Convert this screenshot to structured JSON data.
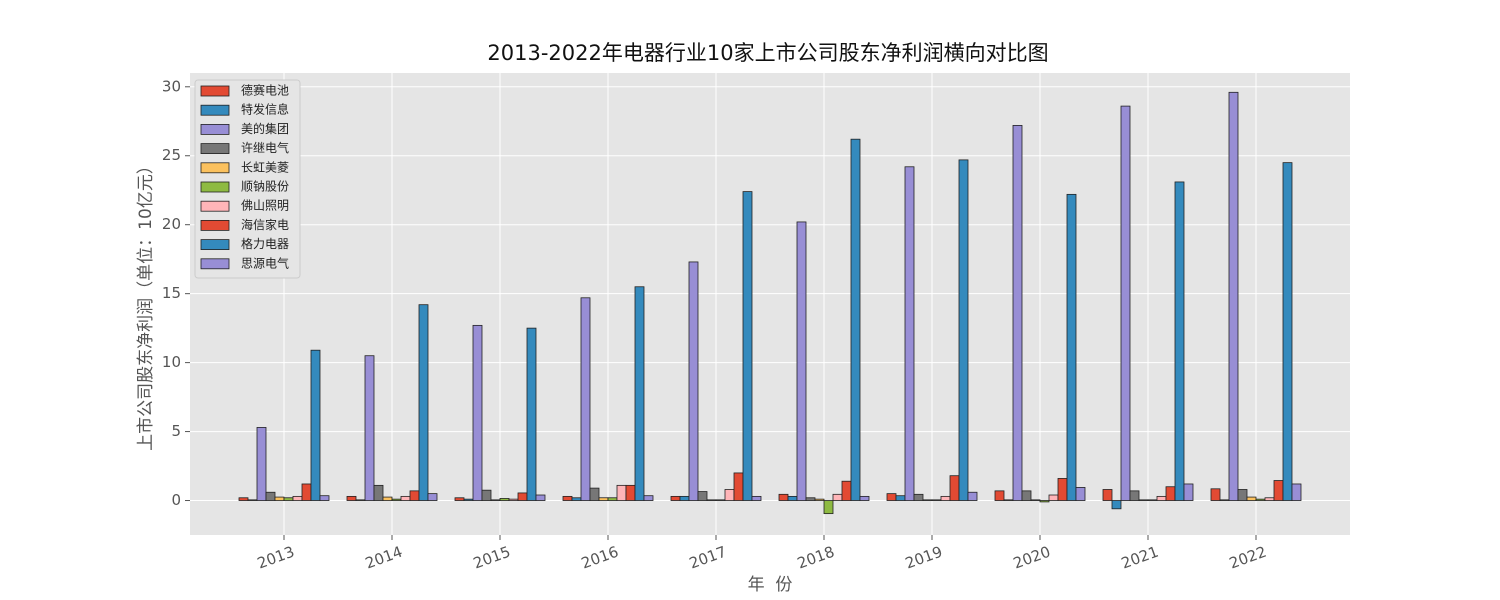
{
  "chart_data": {
    "type": "bar",
    "title": "2013-2022年电器行业10家上市公司股东净利润横向对比图",
    "x_label": "年  份",
    "y_label": "上市公司股东净利润（单位：10亿元）",
    "categories": [
      "2013",
      "2014",
      "2015",
      "2016",
      "2017",
      "2018",
      "2019",
      "2020",
      "2021",
      "2022"
    ],
    "series": [
      {
        "name": "德赛电池",
        "color": "#E24A33",
        "values": [
          0.2,
          0.3,
          0.2,
          0.3,
          0.3,
          0.45,
          0.5,
          0.7,
          0.8,
          0.85
        ]
      },
      {
        "name": "特发信息",
        "color": "#348ABD",
        "values": [
          0.05,
          0.05,
          0.1,
          0.2,
          0.3,
          0.3,
          0.35,
          0.05,
          -0.6,
          0.05
        ]
      },
      {
        "name": "美的集团",
        "color": "#988ED5",
        "values": [
          5.3,
          10.5,
          12.7,
          14.7,
          17.3,
          20.2,
          24.2,
          27.2,
          28.6,
          29.6
        ]
      },
      {
        "name": "许继电气",
        "color": "#777777",
        "values": [
          0.6,
          1.1,
          0.75,
          0.9,
          0.65,
          0.2,
          0.45,
          0.7,
          0.7,
          0.8
        ]
      },
      {
        "name": "长虹美菱",
        "color": "#FBC15E",
        "values": [
          0.25,
          0.25,
          0.05,
          0.2,
          0.05,
          0.1,
          0.05,
          0.05,
          0.05,
          0.25
        ]
      },
      {
        "name": "顺钠股份",
        "color": "#8EBA42",
        "values": [
          0.2,
          0.1,
          0.15,
          0.2,
          0.05,
          -0.95,
          0.05,
          -0.1,
          0.05,
          0.1
        ]
      },
      {
        "name": "佛山照明",
        "color": "#FFB5B8",
        "values": [
          0.3,
          0.3,
          0.1,
          1.1,
          0.8,
          0.45,
          0.3,
          0.4,
          0.3,
          0.2
        ]
      },
      {
        "name": "海信家电",
        "color": "#E24A33",
        "values": [
          1.2,
          0.7,
          0.55,
          1.1,
          2.0,
          1.4,
          1.8,
          1.6,
          1.0,
          1.45
        ]
      },
      {
        "name": "格力电器",
        "color": "#348ABD",
        "values": [
          10.9,
          14.2,
          12.5,
          15.5,
          22.4,
          26.2,
          24.7,
          22.2,
          23.1,
          24.5
        ]
      },
      {
        "name": "思源电气",
        "color": "#988ED5",
        "values": [
          0.35,
          0.5,
          0.4,
          0.35,
          0.3,
          0.3,
          0.6,
          0.95,
          1.2,
          1.2
        ]
      }
    ],
    "ylim": [
      -2.5,
      31
    ],
    "yticks": [
      0,
      5,
      10,
      15,
      20,
      25,
      30
    ],
    "grid": true,
    "legend": "upper left"
  }
}
